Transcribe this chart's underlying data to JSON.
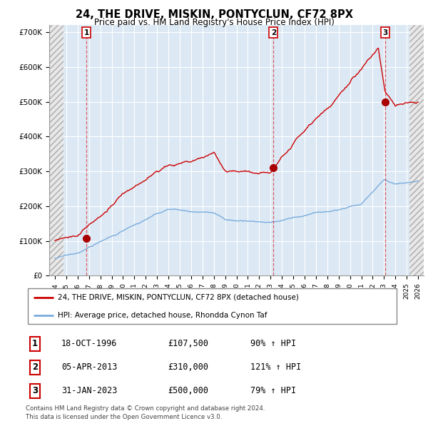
{
  "title": "24, THE DRIVE, MISKIN, PONTYCLUN, CF72 8PX",
  "subtitle": "Price paid vs. HM Land Registry's House Price Index (HPI)",
  "property_label": "24, THE DRIVE, MISKIN, PONTYCLUN, CF72 8PX (detached house)",
  "hpi_label": "HPI: Average price, detached house, Rhondda Cynon Taf",
  "footnote": "Contains HM Land Registry data © Crown copyright and database right 2024.\nThis data is licensed under the Open Government Licence v3.0.",
  "sales": [
    {
      "label": "1",
      "date": "18-OCT-1996",
      "price": 107500,
      "pct": "90%",
      "direction": "↑",
      "x": 1996.79
    },
    {
      "label": "2",
      "date": "05-APR-2013",
      "price": 310000,
      "pct": "121%",
      "direction": "↑",
      "x": 2013.26
    },
    {
      "label": "3",
      "date": "31-JAN-2023",
      "price": 500000,
      "pct": "79%",
      "direction": "↑",
      "x": 2023.08
    }
  ],
  "ylim": [
    0,
    720000
  ],
  "xlim": [
    1993.5,
    2026.5
  ],
  "yticks": [
    0,
    100000,
    200000,
    300000,
    400000,
    500000,
    600000,
    700000
  ],
  "ytick_labels": [
    "£0",
    "£100K",
    "£200K",
    "£300K",
    "£400K",
    "£500K",
    "£600K",
    "£700K"
  ],
  "property_color": "#cc0000",
  "hpi_color": "#7aabdd",
  "sale_marker_color": "#aa0000",
  "vline_color": "#dd4444",
  "chart_bg": "#dce9f5",
  "grid_color": "#ffffff",
  "table_border_color": "#cc0000",
  "hatch_left_end": 1994.75,
  "hatch_right_start": 2025.25,
  "data_start": 1994.0,
  "data_end": 2026.0
}
